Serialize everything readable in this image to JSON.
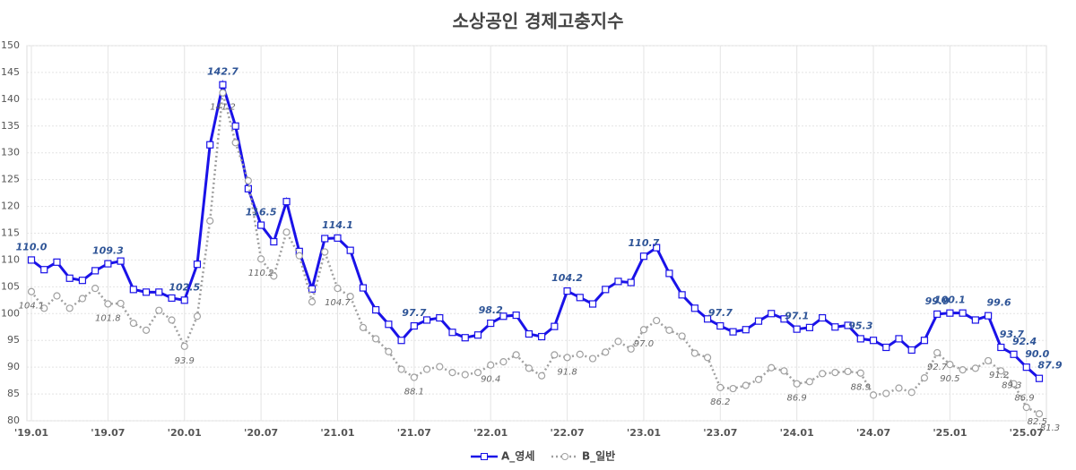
{
  "chart_data": {
    "type": "line",
    "title": "소상공인 경제고충지수",
    "categories": [
      "'19.01",
      null,
      null,
      null,
      null,
      null,
      "'19.07",
      null,
      null,
      null,
      null,
      null,
      "'20.01",
      null,
      null,
      null,
      null,
      null,
      "'20.07",
      null,
      null,
      null,
      null,
      null,
      "'21.01",
      null,
      null,
      null,
      null,
      null,
      "'21.07",
      null,
      null,
      null,
      null,
      null,
      "'22.01",
      null,
      null,
      null,
      null,
      null,
      "'22.07",
      null,
      null,
      null,
      null,
      null,
      "'23.01",
      null,
      null,
      null,
      null,
      null,
      "'23.07",
      null,
      null,
      null,
      null,
      null,
      "'24.01",
      null,
      null,
      null,
      null,
      null,
      "'24.07",
      null,
      null,
      null,
      null,
      null,
      "'25.01",
      null,
      null,
      null,
      null,
      null,
      "'25.07",
      null
    ],
    "series": [
      {
        "name": "A_영세",
        "color": "#1a12e8",
        "marker": "square",
        "dash": "solid",
        "values": [
          110.0,
          108.2,
          109.6,
          106.6,
          106.2,
          108.0,
          109.3,
          109.8,
          104.5,
          104.0,
          104.0,
          102.9,
          102.5,
          109.2,
          131.5,
          142.7,
          135.0,
          123.3,
          116.5,
          113.4,
          120.9,
          111.6,
          104.6,
          114.0,
          114.1,
          111.8,
          104.8,
          100.7,
          98.0,
          95.0,
          97.7,
          98.8,
          99.2,
          96.5,
          95.5,
          96.0,
          98.2,
          99.5,
          99.7,
          96.2,
          95.7,
          97.6,
          104.2,
          103.0,
          101.8,
          104.5,
          106.0,
          105.8,
          110.7,
          112.3,
          107.5,
          103.5,
          101.0,
          99.0,
          97.7,
          96.6,
          97.0,
          98.6,
          100.0,
          99.0,
          97.1,
          97.4,
          99.2,
          97.5,
          97.8,
          95.3,
          95.0,
          93.7,
          95.3,
          93.2,
          95.0,
          99.9,
          100.1,
          100.1,
          98.8,
          99.6,
          93.7,
          92.4,
          90.0,
          87.9
        ],
        "value_labels": [
          "110.0",
          null,
          null,
          null,
          null,
          null,
          "109.3",
          null,
          null,
          null,
          null,
          null,
          "102.5",
          null,
          null,
          "142.7",
          null,
          null,
          "116.5",
          null,
          null,
          null,
          null,
          null,
          "114.1",
          null,
          null,
          null,
          null,
          null,
          "97.7",
          null,
          null,
          null,
          null,
          null,
          "98.2",
          null,
          null,
          null,
          null,
          null,
          "104.2",
          null,
          null,
          null,
          null,
          null,
          "110.7",
          null,
          null,
          null,
          null,
          null,
          "97.7",
          null,
          null,
          null,
          null,
          null,
          "97.1",
          null,
          null,
          null,
          null,
          "95.3",
          null,
          null,
          null,
          null,
          null,
          "99.9",
          "100.1",
          null,
          null,
          "99.6",
          "93.7",
          "92.4",
          "90.0",
          "87.9"
        ]
      },
      {
        "name": "B_일반",
        "color": "#a0a0a0",
        "marker": "circle",
        "dash": "dotted",
        "values": [
          104.1,
          101.0,
          103.3,
          101.0,
          102.8,
          104.7,
          101.8,
          101.9,
          98.2,
          96.9,
          100.6,
          98.8,
          93.9,
          99.5,
          117.3,
          141.2,
          131.9,
          124.8,
          110.2,
          107.0,
          115.2,
          110.8,
          102.2,
          111.5,
          104.7,
          103.2,
          97.4,
          95.3,
          92.9,
          89.6,
          88.1,
          89.6,
          90.1,
          89.0,
          88.6,
          89.0,
          90.4,
          91.0,
          92.3,
          89.8,
          88.4,
          92.3,
          91.8,
          92.4,
          91.6,
          92.8,
          94.8,
          93.4,
          97.0,
          98.7,
          96.9,
          95.8,
          92.6,
          91.8,
          86.2,
          86.0,
          86.6,
          87.7,
          89.9,
          89.3,
          86.9,
          87.3,
          88.8,
          89.0,
          89.2,
          88.9,
          84.8,
          85.1,
          86.1,
          85.3,
          88.0,
          92.7,
          90.5,
          89.5,
          89.8,
          91.2,
          89.3,
          86.9,
          82.5,
          81.3
        ],
        "value_labels": [
          "104.1",
          null,
          null,
          null,
          null,
          null,
          "101.8",
          null,
          null,
          null,
          null,
          null,
          "93.9",
          null,
          null,
          "141.2",
          null,
          null,
          "110.2",
          null,
          null,
          null,
          null,
          null,
          "104.7",
          null,
          null,
          null,
          null,
          null,
          "88.1",
          null,
          null,
          null,
          null,
          null,
          "90.4",
          null,
          null,
          null,
          null,
          null,
          "91.8",
          null,
          null,
          null,
          null,
          null,
          "97.0",
          null,
          null,
          null,
          null,
          null,
          "86.2",
          null,
          null,
          null,
          null,
          null,
          "86.9",
          null,
          null,
          null,
          null,
          "88.9",
          null,
          null,
          null,
          null,
          null,
          "92.7",
          "90.5",
          null,
          null,
          "91.2",
          "89.3",
          "86.9",
          "82.5",
          "81.3"
        ]
      }
    ],
    "ylim": [
      80,
      150
    ],
    "yticks": [
      80,
      85,
      90,
      95,
      100,
      105,
      110,
      115,
      120,
      125,
      130,
      135,
      140,
      145,
      150
    ],
    "grid": true,
    "legend": "bottom"
  }
}
